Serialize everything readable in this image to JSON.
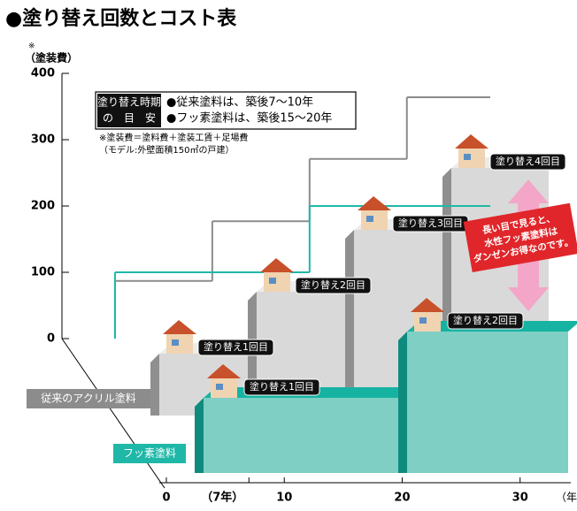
{
  "title": "●塗り替え回数とコスト表",
  "note_mark": "※",
  "guide": {
    "title_lines": [
      "塗り替え時期",
      "の　目　安"
    ],
    "items": [
      "●従来塗料は、築後7〜10年",
      "●フッ素塗料は、築後15〜20年"
    ]
  },
  "footnotes": [
    "※塗装費＝塗料費＋塗装工賃＋足場費",
    "（モデル:外壁面積150㎡の戸建）"
  ],
  "callout": [
    "長い目で見ると、",
    "水性フッ素塗料は",
    "ダンゼンお得なのです。"
  ],
  "chart_data": {
    "type": "step",
    "y_label": "（塗装費）",
    "x_label": "（年数）",
    "ylim": [
      0,
      400
    ],
    "yticks": [
      0,
      100,
      200,
      300,
      400
    ],
    "xlim": [
      0,
      34
    ],
    "xticks": [
      0,
      {
        "value": 7,
        "label": "（7年）"
      },
      10,
      20,
      30
    ],
    "series": [
      {
        "name": "従来のアクリル塗料",
        "color": "#8c8c8c",
        "x": [
          7,
          14,
          21,
          28
        ],
        "values": [
          87,
          177,
          271,
          364
        ],
        "step_labels": [
          "塗り替え1回目",
          "塗り替え2回目",
          "塗り替え3回目",
          "塗り替え4回目"
        ]
      },
      {
        "name": "フッ素塗料",
        "color": "#1fb8a8",
        "x": [
          7,
          21
        ],
        "values": [
          100,
          200
        ],
        "step_labels": [
          "塗り替え1回目",
          "塗り替え2回目"
        ]
      }
    ]
  }
}
